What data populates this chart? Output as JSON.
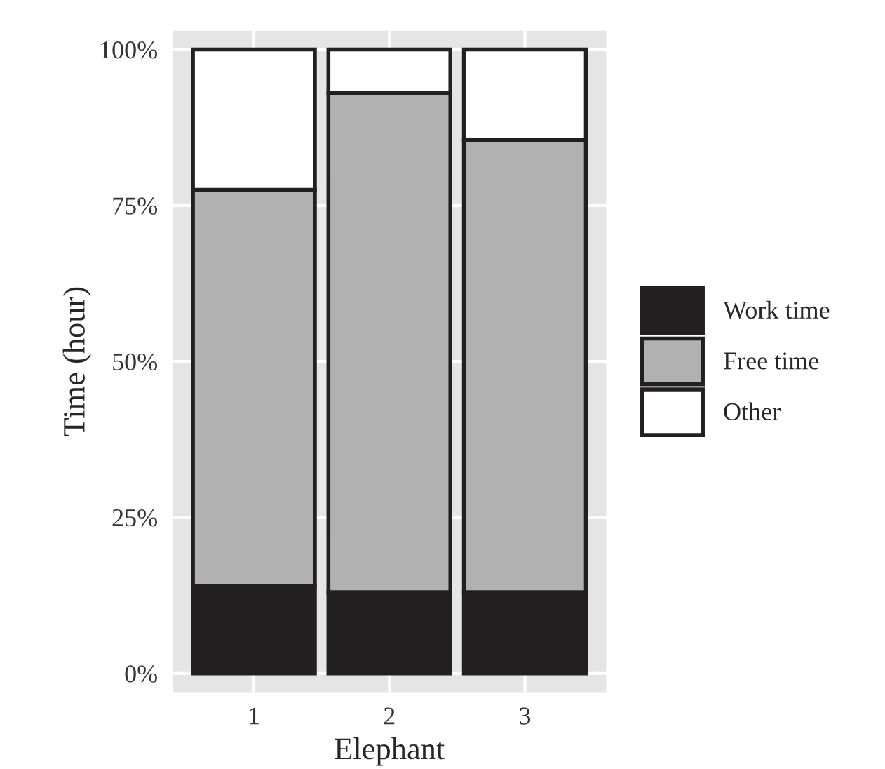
{
  "chart_data": {
    "type": "bar",
    "stacked": true,
    "xlabel": "Elephant",
    "ylabel": "Time (hour)",
    "categories": [
      "1",
      "2",
      "3"
    ],
    "series": [
      {
        "name": "Work time",
        "color": "#231f20",
        "values": [
          14,
          13,
          13
        ]
      },
      {
        "name": "Free time",
        "color": "#b1b1b3",
        "values": [
          63.5,
          80,
          72.5
        ]
      },
      {
        "name": "Other",
        "color": "#ffffff",
        "values": [
          22.5,
          7,
          14.5
        ]
      }
    ],
    "ylim": [
      -3,
      103
    ],
    "yticks": [
      {
        "value": 0,
        "label": "0%"
      },
      {
        "value": 25,
        "label": "25%"
      },
      {
        "value": 50,
        "label": "50%"
      },
      {
        "value": 75,
        "label": "75%"
      },
      {
        "value": 100,
        "label": "100%"
      }
    ],
    "grid": true,
    "legend": "right"
  }
}
